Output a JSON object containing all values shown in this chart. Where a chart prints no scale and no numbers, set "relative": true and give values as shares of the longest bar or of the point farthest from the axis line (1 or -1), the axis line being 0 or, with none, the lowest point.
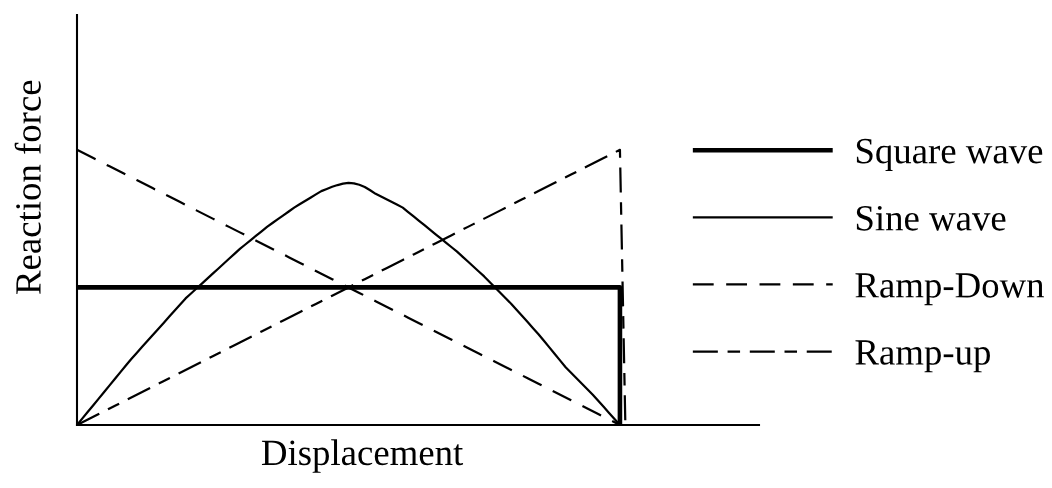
{
  "chart_data": {
    "type": "line",
    "relative": true,
    "xlabel": "Displacement",
    "ylabel": "Reaction force",
    "legend": "right",
    "categories": [
      null,
      null,
      null,
      null,
      null,
      null,
      null,
      null,
      null,
      null,
      null,
      null,
      null,
      null,
      null,
      null,
      null,
      null,
      null,
      null,
      null,
      null,
      null,
      null,
      null,
      null,
      null,
      null,
      null,
      null,
      null,
      null,
      null,
      null,
      null,
      null,
      null,
      null,
      null,
      null,
      null,
      null,
      null,
      null,
      null,
      null,
      null,
      null,
      null,
      null,
      null,
      null,
      null,
      null,
      null,
      null,
      null,
      null,
      null,
      null,
      null,
      null,
      null,
      null,
      null,
      null,
      null,
      null,
      null,
      null,
      null,
      null,
      null,
      null,
      null,
      null,
      null,
      null,
      null,
      null,
      null,
      null,
      null,
      null,
      null,
      null,
      null,
      null,
      null,
      null,
      null,
      null,
      null,
      null,
      null,
      null,
      null,
      null,
      null,
      null,
      null,
      null
    ],
    "series": [
      {
        "name": "Square wave",
        "type": "step",
        "color": "#000000",
        "line_style": "solid",
        "values": [
          0.5,
          0.5,
          0.5,
          0.5,
          0.5,
          0.5,
          0.5,
          0.5,
          0.5,
          0.5,
          0.5,
          0.5,
          0.5,
          0.5,
          0.5,
          0.5,
          0.5,
          0.5,
          0.5,
          0.5,
          0.5,
          0.5,
          0.5,
          0.5,
          0.5,
          0.5,
          0.5,
          0.5,
          0.5,
          0.5,
          0.5,
          0.5,
          0.5,
          0.5,
          0.5,
          0.5,
          0.5,
          0.5,
          0.5,
          0.5,
          0.5,
          0.5,
          0.5,
          0.5,
          0.5,
          0.5,
          0.5,
          0.5,
          0.5,
          0.5,
          0.5,
          0.5,
          0.5,
          0.5,
          0.5,
          0.5,
          0.5,
          0.5,
          0.5,
          0.5,
          0.5,
          0.5,
          0.5,
          0.5,
          0.5,
          0.5,
          0.5,
          0.5,
          0.5,
          0.5,
          0.5,
          0.5,
          0.5,
          0.5,
          0.5,
          0.5,
          0.5,
          0.5,
          0.5,
          0.5,
          0.5,
          0.5,
          0.5,
          0.5,
          0.5,
          0.5,
          0.5,
          0.5,
          0.5,
          0.5,
          0.5,
          0.5,
          0.5,
          0.5,
          0.5,
          0.5,
          0.5,
          0.5,
          0.5,
          0.5,
          0,
          null
        ]
      },
      {
        "name": "Sine wave",
        "color": "#000000",
        "line_style": "solid",
        "values": [
          0,
          0.024,
          0.048,
          0.072,
          0.096,
          0.12,
          0.144,
          0.168,
          0.192,
          0.216,
          0.24,
          0.262,
          0.284,
          0.306,
          0.328,
          0.35,
          0.372,
          0.394,
          0.416,
          0.438,
          0.46,
          0.478,
          0.496,
          0.514,
          0.532,
          0.55,
          0.568,
          0.586,
          0.604,
          0.622,
          0.64,
          0.656,
          0.672,
          0.688,
          0.704,
          0.72,
          0.734,
          0.748,
          0.762,
          0.776,
          0.79,
          0.802,
          0.814,
          0.826,
          0.838,
          0.85,
          0.858,
          0.866,
          0.872,
          0.877,
          0.88,
          0.878,
          0.873,
          0.865,
          0.853,
          0.84,
          0.83,
          0.82,
          0.81,
          0.8,
          0.79,
          0.774,
          0.758,
          0.742,
          0.726,
          0.71,
          0.694,
          0.678,
          0.662,
          0.646,
          0.63,
          0.612,
          0.594,
          0.576,
          0.558,
          0.54,
          0.52,
          0.5,
          0.48,
          0.46,
          0.44,
          0.418,
          0.396,
          0.374,
          0.352,
          0.33,
          0.306,
          0.282,
          0.258,
          0.234,
          0.21,
          0.19,
          0.17,
          0.15,
          0.13,
          0.11,
          0.088,
          0.066,
          0.044,
          0.022,
          0,
          null
        ]
      },
      {
        "name": "Ramp-Down",
        "color": "#000000",
        "line_style": "dashed",
        "values": [
          1,
          0.99,
          0.98,
          0.97,
          0.96,
          0.95,
          0.94,
          0.93,
          0.92,
          0.91,
          0.9,
          0.89,
          0.88,
          0.87,
          0.86,
          0.85,
          0.84,
          0.83,
          0.82,
          0.81,
          0.8,
          0.79,
          0.78,
          0.77,
          0.76,
          0.75,
          0.74,
          0.73,
          0.72,
          0.71,
          0.7,
          0.69,
          0.68,
          0.67,
          0.66,
          0.65,
          0.64,
          0.63,
          0.62,
          0.61,
          0.6,
          0.59,
          0.58,
          0.57,
          0.56,
          0.55,
          0.54,
          0.53,
          0.52,
          0.51,
          0.5,
          0.49,
          0.48,
          0.47,
          0.46,
          0.45,
          0.44,
          0.43,
          0.42,
          0.41,
          0.4,
          0.39,
          0.38,
          0.37,
          0.36,
          0.35,
          0.34,
          0.33,
          0.32,
          0.31,
          0.3,
          0.29,
          0.28,
          0.27,
          0.26,
          0.25,
          0.24,
          0.23,
          0.22,
          0.21,
          0.2,
          0.19,
          0.18,
          0.17,
          0.16,
          0.15,
          0.14,
          0.13,
          0.12,
          0.11,
          0.1,
          0.09,
          0.08,
          0.07,
          0.06,
          0.05,
          0.04,
          0.03,
          0.02,
          0.01,
          0,
          null
        ]
      },
      {
        "name": "Ramp-up",
        "color": "#000000",
        "line_style": "dashdot",
        "values": [
          0,
          0.01,
          0.02,
          0.03,
          0.04,
          0.05,
          0.06,
          0.07,
          0.08,
          0.09,
          0.1,
          0.11,
          0.12,
          0.13,
          0.14,
          0.15,
          0.16,
          0.17,
          0.18,
          0.19,
          0.2,
          0.21,
          0.22,
          0.23,
          0.24,
          0.25,
          0.26,
          0.27,
          0.28,
          0.29,
          0.3,
          0.31,
          0.32,
          0.33,
          0.34,
          0.35,
          0.36,
          0.37,
          0.38,
          0.39,
          0.4,
          0.41,
          0.42,
          0.43,
          0.44,
          0.45,
          0.46,
          0.47,
          0.48,
          0.49,
          0.5,
          0.51,
          0.52,
          0.53,
          0.54,
          0.55,
          0.56,
          0.57,
          0.58,
          0.59,
          0.6,
          0.61,
          0.62,
          0.63,
          0.64,
          0.65,
          0.66,
          0.67,
          0.68,
          0.69,
          0.7,
          0.71,
          0.72,
          0.73,
          0.74,
          0.75,
          0.76,
          0.77,
          0.78,
          0.79,
          0.8,
          0.81,
          0.82,
          0.83,
          0.84,
          0.85,
          0.86,
          0.87,
          0.88,
          0.89,
          0.9,
          0.91,
          0.92,
          0.93,
          0.94,
          0.95,
          0.96,
          0.97,
          0.98,
          0.99,
          1,
          0
        ]
      }
    ]
  }
}
